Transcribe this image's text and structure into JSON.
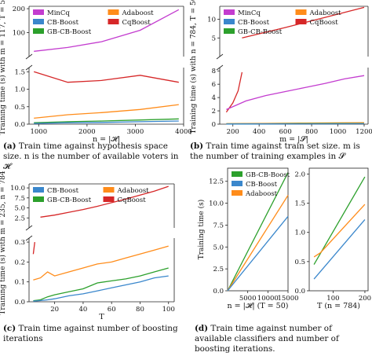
{
  "colors": {
    "MinCq": "#c33ccf",
    "Adaboost": "#ff8c1a",
    "CB-Boost": "#3a87cc",
    "CqBoost": "#d62728",
    "GB-CB-Boost": "#2ca02c",
    "axis": "#222222"
  },
  "captions": {
    "a": {
      "label": "(a)",
      "text": "Train time against hypothesis space size. n is the number of available voters in 𝓗"
    },
    "b": {
      "label": "(b)",
      "text": "Train time against train set size. m is the number of training examples in 𝓢"
    },
    "c": {
      "label": "(c)",
      "text": "Train time against number of boosting iterations"
    },
    "d": {
      "label": "(d)",
      "text": "Train time against number of available classifiers and number of boosting iterations."
    }
  },
  "chart_data": [
    {
      "id": "a",
      "type": "line",
      "xlabel": "n = |𝓗|",
      "ylabel": "Training time (s) with m = 117, T = 50",
      "x_ticks": [
        "1000",
        "2000",
        "3000",
        "4000"
      ],
      "xlim": [
        800,
        4000
      ],
      "broken_y_axis": true,
      "upper": {
        "ylim": [
          0,
          210
        ],
        "y_ticks": [
          "100",
          "200"
        ]
      },
      "lower": {
        "ylim": [
          0,
          1.62
        ],
        "y_ticks": [
          "0.0",
          "0.5",
          "1.0",
          "1.5"
        ]
      },
      "legend": [
        "MinCq",
        "Adaboost",
        "CB-Boost",
        "CqBoost",
        "GB-CB-Boost"
      ],
      "legend_placement": "top-left",
      "series": [
        {
          "name": "MinCq",
          "panel": "upper",
          "x": [
            900,
            1600,
            2300,
            3100,
            3900
          ],
          "y": [
            22,
            38,
            62,
            110,
            196
          ]
        },
        {
          "name": "CqBoost",
          "panel": "lower",
          "x": [
            900,
            1600,
            2300,
            3100,
            3900
          ],
          "y": [
            1.5,
            1.2,
            1.25,
            1.4,
            1.2
          ]
        },
        {
          "name": "Adaboost",
          "panel": "lower",
          "x": [
            900,
            1600,
            2300,
            3100,
            3900
          ],
          "y": [
            0.17,
            0.27,
            0.33,
            0.42,
            0.56
          ]
        },
        {
          "name": "GB-CB-Boost",
          "panel": "lower",
          "x": [
            900,
            1600,
            2300,
            3100,
            3900
          ],
          "y": [
            0.04,
            0.07,
            0.09,
            0.12,
            0.15
          ]
        },
        {
          "name": "CB-Boost",
          "panel": "lower",
          "x": [
            900,
            1600,
            2300,
            3100,
            3900
          ],
          "y": [
            0.02,
            0.04,
            0.05,
            0.07,
            0.09
          ]
        }
      ]
    },
    {
      "id": "b",
      "type": "line",
      "xlabel": "m = |𝓢|",
      "ylabel": "Training time (s) with n = 784, T = 50",
      "x_ticks": [
        "200",
        "400",
        "600",
        "800",
        "1000",
        "1200"
      ],
      "xlim": [
        100,
        1230
      ],
      "broken_y_axis": true,
      "upper": {
        "ylim": [
          0,
          13.5
        ],
        "y_ticks": [
          "5",
          "10"
        ]
      },
      "lower": {
        "ylim": [
          0,
          8.5
        ],
        "y_ticks": [
          "0",
          "2",
          "4",
          "6",
          "8"
        ]
      },
      "legend": [
        "MinCq",
        "Adaboost",
        "CB-Boost",
        "CqBoost",
        "GB-CB-Boost"
      ],
      "legend_placement": "top-left",
      "series": [
        {
          "name": "CqBoost",
          "panel": "upper",
          "x": [
            270,
            600,
            900,
            1200
          ],
          "y": [
            5.0,
            7.8,
            10.5,
            13.2
          ]
        },
        {
          "name": "CqBoost",
          "panel": "lower",
          "x": [
            150,
            200,
            240,
            270
          ],
          "y": [
            1.8,
            3.2,
            5.0,
            7.8
          ]
        },
        {
          "name": "MinCq",
          "panel": "lower",
          "x": [
            150,
            300,
            450,
            600,
            750,
            900,
            1050,
            1200
          ],
          "y": [
            2.2,
            3.5,
            4.3,
            4.9,
            5.5,
            6.1,
            6.8,
            7.3
          ]
        },
        {
          "name": "Adaboost",
          "panel": "lower",
          "x": [
            150,
            450,
            750,
            1050,
            1200
          ],
          "y": [
            0.08,
            0.12,
            0.16,
            0.2,
            0.22
          ]
        },
        {
          "name": "GB-CB-Boost",
          "panel": "lower",
          "x": [
            150,
            450,
            750,
            1050,
            1200
          ],
          "y": [
            0.03,
            0.06,
            0.08,
            0.1,
            0.11
          ]
        },
        {
          "name": "CB-Boost",
          "panel": "lower",
          "x": [
            150,
            450,
            750,
            1050,
            1200
          ],
          "y": [
            0.02,
            0.04,
            0.05,
            0.06,
            0.07
          ]
        }
      ]
    },
    {
      "id": "c",
      "type": "line",
      "xlabel": "T",
      "ylabel": "Training time (s) with m = 235, n = 784",
      "x_ticks": [
        "20",
        "40",
        "60",
        "80",
        "100"
      ],
      "xlim": [
        2,
        104
      ],
      "broken_y_axis": true,
      "upper": {
        "ylim": [
          0,
          11
        ],
        "y_ticks": [
          "2.5",
          "5.0",
          "7.5",
          "10.0"
        ]
      },
      "lower": {
        "ylim": [
          0,
          0.32
        ],
        "y_ticks": [
          "0.0",
          "0.1",
          "0.2",
          "0.3"
        ]
      },
      "legend": [
        "CB-Boost",
        "Adaboost",
        "GB-CB-Boost",
        "CqBoost"
      ],
      "legend_placement": "top-left",
      "series": [
        {
          "name": "CqBoost",
          "panel": "upper",
          "x": [
            10,
            20,
            30,
            40,
            50,
            60,
            70,
            80,
            90,
            100
          ],
          "y": [
            2.7,
            3.2,
            3.9,
            4.6,
            5.4,
            6.3,
            7.2,
            8.2,
            9.2,
            10.4
          ]
        },
        {
          "name": "CqBoost",
          "panel": "lower",
          "x": [
            5,
            6
          ],
          "y": [
            0.24,
            0.3
          ]
        },
        {
          "name": "Adaboost",
          "panel": "lower",
          "x": [
            5,
            10,
            15,
            20,
            30,
            40,
            50,
            60,
            70,
            80,
            90,
            100
          ],
          "y": [
            0.11,
            0.12,
            0.15,
            0.13,
            0.15,
            0.17,
            0.19,
            0.2,
            0.22,
            0.24,
            0.26,
            0.28
          ]
        },
        {
          "name": "GB-CB-Boost",
          "panel": "lower",
          "x": [
            5,
            10,
            15,
            20,
            30,
            40,
            50,
            60,
            70,
            80,
            90,
            100
          ],
          "y": [
            0.005,
            0.01,
            0.025,
            0.035,
            0.05,
            0.065,
            0.095,
            0.105,
            0.115,
            0.13,
            0.15,
            0.17
          ]
        },
        {
          "name": "CB-Boost",
          "panel": "lower",
          "x": [
            5,
            10,
            15,
            20,
            30,
            40,
            50,
            60,
            70,
            80,
            90,
            100
          ],
          "y": [
            0.003,
            0.006,
            0.01,
            0.015,
            0.03,
            0.04,
            0.055,
            0.07,
            0.085,
            0.1,
            0.12,
            0.13
          ]
        }
      ]
    },
    {
      "id": "d-left",
      "type": "line",
      "xlabel": "n = |𝓗| (T = 50)",
      "ylabel": "Training time (s)",
      "x_ticks": [
        "5000",
        "10000",
        "15000"
      ],
      "y_ticks": [
        "0.0",
        "2.5",
        "5.0",
        "7.5",
        "10.0",
        "12.5"
      ],
      "xlim": [
        0,
        15000
      ],
      "ylim": [
        0,
        14
      ],
      "legend": [
        "GB-CB-Boost",
        "CB-Boost",
        "Adaboost"
      ],
      "legend_placement": "top-left",
      "series": [
        {
          "name": "GB-CB-Boost",
          "x": [
            0,
            15000
          ],
          "y": [
            0,
            13.5
          ]
        },
        {
          "name": "Adaboost",
          "x": [
            0,
            15000
          ],
          "y": [
            0,
            10.9
          ]
        },
        {
          "name": "CB-Boost",
          "x": [
            0,
            15000
          ],
          "y": [
            0,
            8.5
          ]
        }
      ]
    },
    {
      "id": "d-right",
      "type": "line",
      "xlabel": "T (n = 784)",
      "ylabel": "",
      "x_ticks": [
        "100",
        "200"
      ],
      "y_ticks": [
        "0.0",
        "0.5",
        "1.0",
        "1.5",
        "2.0"
      ],
      "xlim": [
        25,
        210
      ],
      "ylim": [
        0,
        2.1
      ],
      "series": [
        {
          "name": "GB-CB-Boost",
          "x": [
            40,
            200
          ],
          "y": [
            0.45,
            1.95
          ]
        },
        {
          "name": "Adaboost",
          "x": [
            40,
            60,
            200
          ],
          "y": [
            0.58,
            0.65,
            1.48
          ]
        },
        {
          "name": "CB-Boost",
          "x": [
            40,
            200
          ],
          "y": [
            0.2,
            1.22
          ]
        }
      ]
    }
  ]
}
